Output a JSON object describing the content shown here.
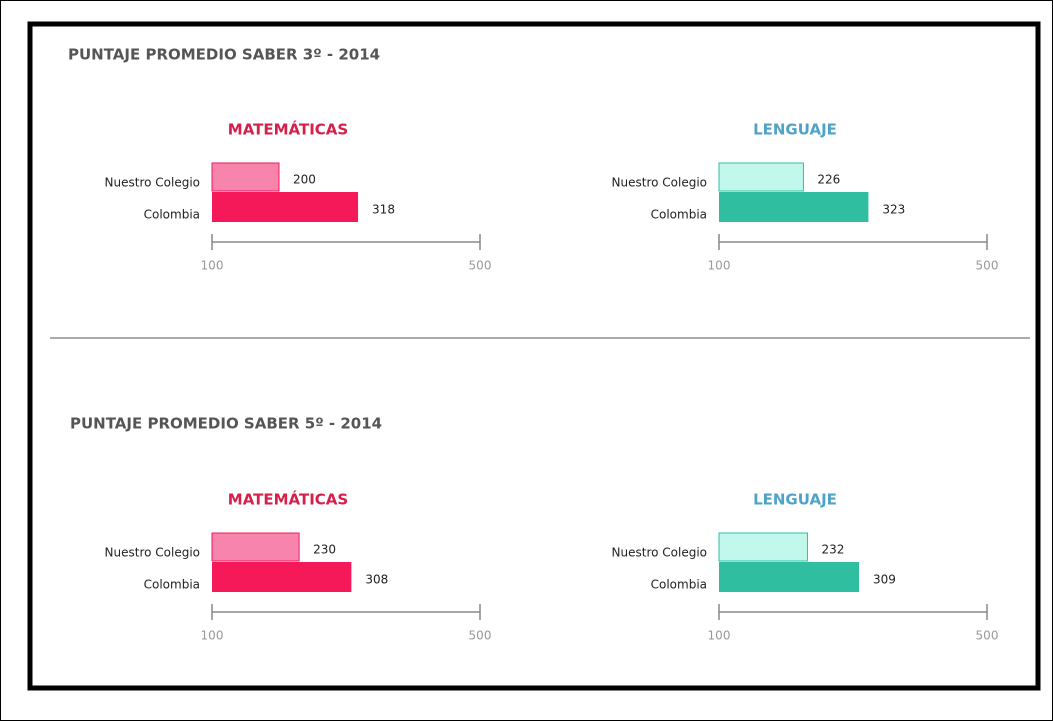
{
  "sections": [
    {
      "title": "PUNTAJE PROMEDIO SABER 3º - 2014"
    },
    {
      "title": "PUNTAJE PROMEDIO SABER 5º - 2014"
    }
  ],
  "chart_data": [
    {
      "type": "bar",
      "orientation": "horizontal",
      "title": "MATEMÁTICAS",
      "title_color": "#d4204a",
      "categories": [
        "Nuestro Colegio",
        "Colombia"
      ],
      "values": [
        200,
        318
      ],
      "colors": [
        "#f784ad",
        "#f5195a"
      ],
      "xlim": [
        100,
        500
      ],
      "xticks": [
        100,
        500
      ]
    },
    {
      "type": "bar",
      "orientation": "horizontal",
      "title": "LENGUAJE",
      "title_color": "#4fa3c7",
      "categories": [
        "Nuestro Colegio",
        "Colombia"
      ],
      "values": [
        226,
        323
      ],
      "colors": [
        "#c2f7ec",
        "#2fbfa0"
      ],
      "xlim": [
        100,
        500
      ],
      "xticks": [
        100,
        500
      ]
    },
    {
      "type": "bar",
      "orientation": "horizontal",
      "title": "MATEMÁTICAS",
      "title_color": "#d4204a",
      "categories": [
        "Nuestro Colegio",
        "Colombia"
      ],
      "values": [
        230,
        308
      ],
      "colors": [
        "#f784ad",
        "#f5195a"
      ],
      "xlim": [
        100,
        500
      ],
      "xticks": [
        100,
        500
      ]
    },
    {
      "type": "bar",
      "orientation": "horizontal",
      "title": "LENGUAJE",
      "title_color": "#4fa3c7",
      "categories": [
        "Nuestro Colegio",
        "Colombia"
      ],
      "values": [
        232,
        309
      ],
      "colors": [
        "#c2f7ec",
        "#2fbfa0"
      ],
      "xlim": [
        100,
        500
      ],
      "xticks": [
        100,
        500
      ]
    }
  ]
}
